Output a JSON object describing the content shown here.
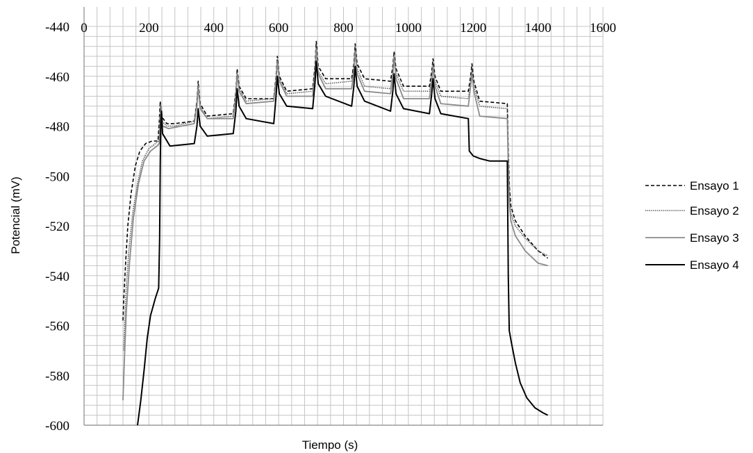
{
  "chart_data": {
    "type": "line",
    "xlabel": "Tiempo (s)",
    "ylabel": "Potencial (mV)",
    "xlim": [
      0,
      1600
    ],
    "ylim": [
      -600,
      -440
    ],
    "x_ticks": [
      0,
      200,
      400,
      600,
      800,
      1000,
      1200,
      1400,
      1600
    ],
    "y_ticks": [
      -440,
      -460,
      -480,
      -500,
      -520,
      -540,
      -560,
      -580,
      -600
    ],
    "x_axis_position": "top",
    "grid": true,
    "legend_position": "right",
    "series": [
      {
        "name": "Ensayo 1",
        "color": "#000000",
        "style": "dashed",
        "points": [
          [
            120,
            -558
          ],
          [
            123,
            -548
          ],
          [
            128,
            -535
          ],
          [
            135,
            -520
          ],
          [
            145,
            -507
          ],
          [
            158,
            -496
          ],
          [
            172,
            -490
          ],
          [
            190,
            -487
          ],
          [
            210,
            -486
          ],
          [
            228,
            -486
          ],
          [
            232,
            -478
          ],
          [
            235,
            -470
          ],
          [
            238,
            -476
          ],
          [
            255,
            -479
          ],
          [
            280,
            -479
          ],
          [
            340,
            -478
          ],
          [
            348,
            -470
          ],
          [
            352,
            -462
          ],
          [
            358,
            -471
          ],
          [
            380,
            -476
          ],
          [
            460,
            -475
          ],
          [
            468,
            -466
          ],
          [
            472,
            -457
          ],
          [
            478,
            -464
          ],
          [
            500,
            -469
          ],
          [
            585,
            -469
          ],
          [
            592,
            -460
          ],
          [
            596,
            -452
          ],
          [
            602,
            -460
          ],
          [
            625,
            -466
          ],
          [
            705,
            -465
          ],
          [
            712,
            -456
          ],
          [
            716,
            -446
          ],
          [
            722,
            -456
          ],
          [
            745,
            -461
          ],
          [
            825,
            -461
          ],
          [
            832,
            -455
          ],
          [
            836,
            -447
          ],
          [
            842,
            -455
          ],
          [
            865,
            -461
          ],
          [
            945,
            -462
          ],
          [
            952,
            -456
          ],
          [
            956,
            -450
          ],
          [
            962,
            -457
          ],
          [
            985,
            -464
          ],
          [
            1065,
            -464
          ],
          [
            1072,
            -458
          ],
          [
            1076,
            -453
          ],
          [
            1082,
            -460
          ],
          [
            1100,
            -466
          ],
          [
            1185,
            -466
          ],
          [
            1192,
            -460
          ],
          [
            1196,
            -455
          ],
          [
            1202,
            -462
          ],
          [
            1220,
            -470
          ],
          [
            1305,
            -471
          ],
          [
            1308,
            -490
          ],
          [
            1312,
            -505
          ],
          [
            1316,
            -512
          ],
          [
            1330,
            -518
          ],
          [
            1360,
            -524
          ],
          [
            1400,
            -530
          ],
          [
            1430,
            -533
          ]
        ]
      },
      {
        "name": "Ensayo 2",
        "color": "#555555",
        "style": "dotted",
        "points": [
          [
            122,
            -570
          ],
          [
            125,
            -560
          ],
          [
            130,
            -545
          ],
          [
            138,
            -530
          ],
          [
            150,
            -515
          ],
          [
            165,
            -503
          ],
          [
            180,
            -494
          ],
          [
            200,
            -489
          ],
          [
            220,
            -487
          ],
          [
            230,
            -486
          ],
          [
            233,
            -477
          ],
          [
            236,
            -471
          ],
          [
            240,
            -478
          ],
          [
            255,
            -480
          ],
          [
            280,
            -480
          ],
          [
            340,
            -478
          ],
          [
            348,
            -471
          ],
          [
            352,
            -463
          ],
          [
            358,
            -472
          ],
          [
            380,
            -477
          ],
          [
            460,
            -476
          ],
          [
            468,
            -467
          ],
          [
            472,
            -458
          ],
          [
            478,
            -465
          ],
          [
            500,
            -470
          ],
          [
            585,
            -469
          ],
          [
            592,
            -461
          ],
          [
            596,
            -453
          ],
          [
            602,
            -461
          ],
          [
            625,
            -467
          ],
          [
            705,
            -466
          ],
          [
            712,
            -457
          ],
          [
            716,
            -448
          ],
          [
            722,
            -458
          ],
          [
            745,
            -463
          ],
          [
            825,
            -462
          ],
          [
            832,
            -456
          ],
          [
            836,
            -448
          ],
          [
            842,
            -457
          ],
          [
            865,
            -464
          ],
          [
            945,
            -465
          ],
          [
            952,
            -458
          ],
          [
            956,
            -451
          ],
          [
            962,
            -459
          ],
          [
            985,
            -466
          ],
          [
            1065,
            -466
          ],
          [
            1072,
            -460
          ],
          [
            1076,
            -455
          ],
          [
            1082,
            -462
          ],
          [
            1100,
            -468
          ],
          [
            1185,
            -469
          ],
          [
            1192,
            -462
          ],
          [
            1196,
            -457
          ],
          [
            1202,
            -464
          ],
          [
            1220,
            -472
          ],
          [
            1305,
            -473
          ],
          [
            1308,
            -492
          ],
          [
            1312,
            -508
          ],
          [
            1316,
            -515
          ],
          [
            1330,
            -520
          ],
          [
            1360,
            -525
          ],
          [
            1400,
            -530
          ],
          [
            1430,
            -532
          ]
        ]
      },
      {
        "name": "Ensayo 3",
        "color": "#8a8a8a",
        "style": "solid",
        "points": [
          [
            120,
            -590
          ],
          [
            124,
            -575
          ],
          [
            130,
            -555
          ],
          [
            140,
            -535
          ],
          [
            152,
            -517
          ],
          [
            168,
            -503
          ],
          [
            185,
            -494
          ],
          [
            205,
            -490
          ],
          [
            225,
            -488
          ],
          [
            232,
            -487
          ],
          [
            235,
            -479
          ],
          [
            238,
            -472
          ],
          [
            242,
            -480
          ],
          [
            260,
            -481
          ],
          [
            300,
            -480
          ],
          [
            340,
            -479
          ],
          [
            348,
            -472
          ],
          [
            352,
            -464
          ],
          [
            358,
            -473
          ],
          [
            380,
            -477
          ],
          [
            460,
            -477
          ],
          [
            468,
            -468
          ],
          [
            472,
            -459
          ],
          [
            478,
            -466
          ],
          [
            500,
            -471
          ],
          [
            585,
            -470
          ],
          [
            592,
            -462
          ],
          [
            596,
            -454
          ],
          [
            602,
            -462
          ],
          [
            625,
            -468
          ],
          [
            705,
            -468
          ],
          [
            712,
            -459
          ],
          [
            716,
            -449
          ],
          [
            722,
            -459
          ],
          [
            745,
            -465
          ],
          [
            825,
            -465
          ],
          [
            832,
            -458
          ],
          [
            836,
            -450
          ],
          [
            842,
            -459
          ],
          [
            865,
            -466
          ],
          [
            945,
            -467
          ],
          [
            952,
            -460
          ],
          [
            956,
            -452
          ],
          [
            962,
            -461
          ],
          [
            985,
            -469
          ],
          [
            1065,
            -469
          ],
          [
            1072,
            -462
          ],
          [
            1076,
            -456
          ],
          [
            1082,
            -464
          ],
          [
            1100,
            -471
          ],
          [
            1185,
            -472
          ],
          [
            1192,
            -464
          ],
          [
            1196,
            -459
          ],
          [
            1202,
            -466
          ],
          [
            1220,
            -476
          ],
          [
            1305,
            -477
          ],
          [
            1308,
            -496
          ],
          [
            1312,
            -512
          ],
          [
            1316,
            -518
          ],
          [
            1330,
            -524
          ],
          [
            1360,
            -530
          ],
          [
            1400,
            -535
          ],
          [
            1430,
            -536
          ]
        ]
      },
      {
        "name": "Ensayo 4",
        "color": "#000000",
        "style": "solid",
        "points": [
          [
            165,
            -600
          ],
          [
            175,
            -590
          ],
          [
            185,
            -578
          ],
          [
            195,
            -565
          ],
          [
            205,
            -556
          ],
          [
            220,
            -549
          ],
          [
            230,
            -545
          ],
          [
            233,
            -525
          ],
          [
            235,
            -495
          ],
          [
            237,
            -478
          ],
          [
            239,
            -474
          ],
          [
            242,
            -483
          ],
          [
            265,
            -488
          ],
          [
            340,
            -487
          ],
          [
            348,
            -480
          ],
          [
            352,
            -473
          ],
          [
            358,
            -480
          ],
          [
            380,
            -484
          ],
          [
            460,
            -483
          ],
          [
            468,
            -474
          ],
          [
            472,
            -465
          ],
          [
            478,
            -472
          ],
          [
            500,
            -477
          ],
          [
            585,
            -479
          ],
          [
            592,
            -468
          ],
          [
            596,
            -460
          ],
          [
            602,
            -467
          ],
          [
            625,
            -472
          ],
          [
            705,
            -473
          ],
          [
            712,
            -463
          ],
          [
            716,
            -454
          ],
          [
            722,
            -463
          ],
          [
            745,
            -468
          ],
          [
            825,
            -472
          ],
          [
            832,
            -464
          ],
          [
            836,
            -456
          ],
          [
            842,
            -464
          ],
          [
            865,
            -470
          ],
          [
            945,
            -474
          ],
          [
            952,
            -466
          ],
          [
            956,
            -459
          ],
          [
            962,
            -467
          ],
          [
            985,
            -473
          ],
          [
            1065,
            -475
          ],
          [
            1072,
            -467
          ],
          [
            1076,
            -461
          ],
          [
            1082,
            -469
          ],
          [
            1100,
            -475
          ],
          [
            1185,
            -477
          ],
          [
            1188,
            -490
          ],
          [
            1200,
            -492
          ],
          [
            1220,
            -493
          ],
          [
            1250,
            -494
          ],
          [
            1305,
            -494
          ],
          [
            1308,
            -540
          ],
          [
            1311,
            -562
          ],
          [
            1318,
            -567
          ],
          [
            1330,
            -575
          ],
          [
            1345,
            -583
          ],
          [
            1365,
            -589
          ],
          [
            1390,
            -593
          ],
          [
            1415,
            -595
          ],
          [
            1430,
            -596
          ]
        ]
      }
    ]
  }
}
